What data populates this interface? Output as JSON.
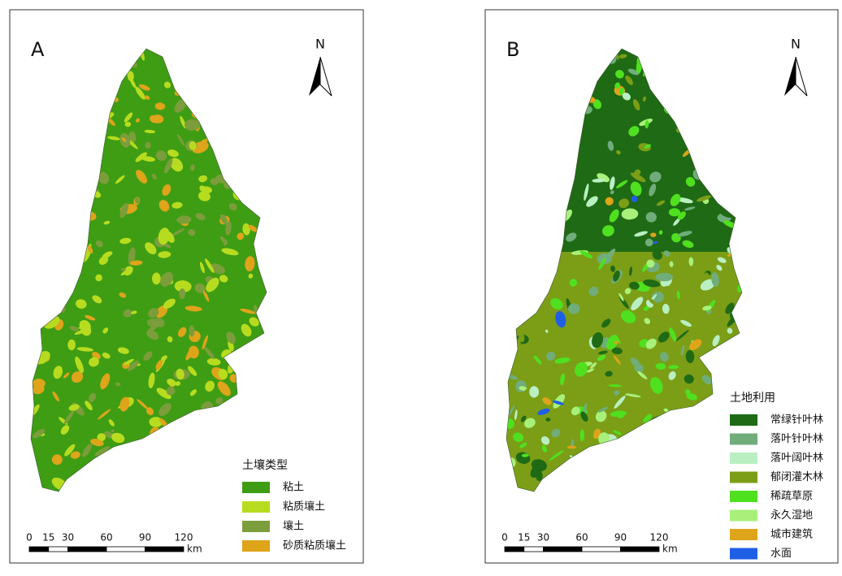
{
  "panels": [
    {
      "label": "A",
      "north": "N",
      "legend": {
        "title": "土壤类型",
        "items": [
          {
            "name": "粘土",
            "color": "#3f9d14"
          },
          {
            "name": "粘质壤土",
            "color": "#b7dc1f"
          },
          {
            "name": "壤土",
            "color": "#7b9d3b"
          },
          {
            "name": "砂质粘质壤土",
            "color": "#dea41a"
          }
        ]
      },
      "scalebar": {
        "ticks": [
          0,
          15,
          30,
          60,
          90,
          120
        ],
        "unit": "km"
      }
    },
    {
      "label": "B",
      "north": "N",
      "legend": {
        "title": "土地利用",
        "items": [
          {
            "name": "常绿针叶林",
            "color": "#1f6a15"
          },
          {
            "name": "落叶针叶林",
            "color": "#70ad7b"
          },
          {
            "name": "落叶阔叶林",
            "color": "#b9efc1"
          },
          {
            "name": "郁闭灌木林",
            "color": "#7c9e16"
          },
          {
            "name": "稀疏草原",
            "color": "#4fe01f"
          },
          {
            "name": "永久湿地",
            "color": "#a9f07b"
          },
          {
            "name": "城市建筑",
            "color": "#dea41a"
          },
          {
            "name": "水面",
            "color": "#1f5fe6"
          }
        ]
      },
      "scalebar": {
        "ticks": [
          0,
          15,
          30,
          60,
          90,
          120
        ],
        "unit": "km"
      }
    }
  ]
}
